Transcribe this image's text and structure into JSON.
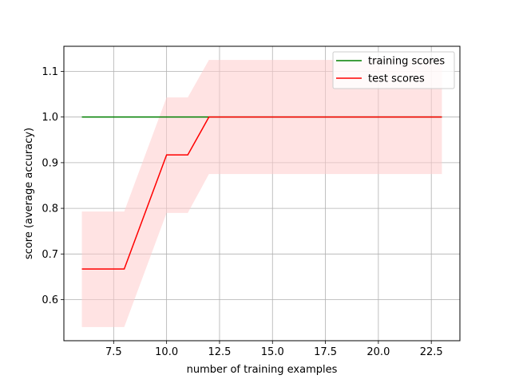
{
  "chart_data": {
    "type": "line",
    "title": "",
    "xlabel": "number of training examples",
    "ylabel": "score (average accuracy)",
    "xlim": [
      5.15,
      23.85
    ],
    "ylim": [
      0.51,
      1.155
    ],
    "xticks": [
      7.5,
      10.0,
      12.5,
      15.0,
      17.5,
      20.0,
      22.5
    ],
    "xtick_labels": [
      "7.5",
      "10.0",
      "12.5",
      "15.0",
      "17.5",
      "20.0",
      "22.5"
    ],
    "yticks": [
      0.6,
      0.7,
      0.8,
      0.9,
      1.0,
      1.1
    ],
    "ytick_labels": [
      "0.6",
      "0.7",
      "0.8",
      "0.9",
      "1.0",
      "1.1"
    ],
    "grid": true,
    "legend_position": "top-right",
    "x": [
      6,
      8,
      10,
      11,
      12,
      23
    ],
    "series": [
      {
        "name": "training scores",
        "color": "#008000",
        "values": [
          1.0,
          1.0,
          1.0,
          1.0,
          1.0,
          1.0
        ]
      },
      {
        "name": "test scores",
        "color": "#ff0000",
        "values": [
          0.667,
          0.667,
          0.917,
          0.917,
          1.0,
          1.0
        ],
        "band_lower": [
          0.54,
          0.54,
          0.79,
          0.79,
          0.875,
          0.875
        ],
        "band_upper": [
          0.793,
          0.793,
          1.043,
          1.043,
          1.125,
          1.125
        ],
        "band_color": "#ffcccc"
      }
    ]
  }
}
